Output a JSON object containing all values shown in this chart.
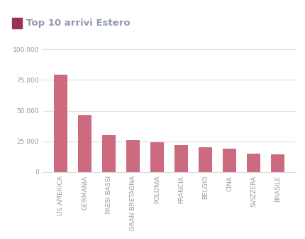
{
  "categories": [
    "US AMERICA",
    "GERMANIA",
    "PAESI BASSI",
    "GRAN BRETAGNA",
    "POLONIA",
    "FRANCIA",
    "BELGIO",
    "CINA",
    "SVIZZERA",
    "BRASILE"
  ],
  "values": [
    79000,
    46000,
    30000,
    26000,
    24000,
    22000,
    20000,
    19000,
    15000,
    14500
  ],
  "bar_color": "#cc6b80",
  "title": "Top 10 arrivi Estero",
  "title_color": "#9099b0",
  "title_square_color": "#993355",
  "ylim": [
    0,
    105000
  ],
  "yticks": [
    0,
    25000,
    50000,
    75000,
    100000
  ],
  "ytick_labels": [
    "0",
    "25.000",
    "50.000",
    "75.000",
    "100.000"
  ],
  "background_color": "#ffffff",
  "grid_color": "#dddddd",
  "tick_label_color": "#999999",
  "tick_label_fontsize": 6.5,
  "title_fontsize": 9.5,
  "bar_width": 0.55
}
